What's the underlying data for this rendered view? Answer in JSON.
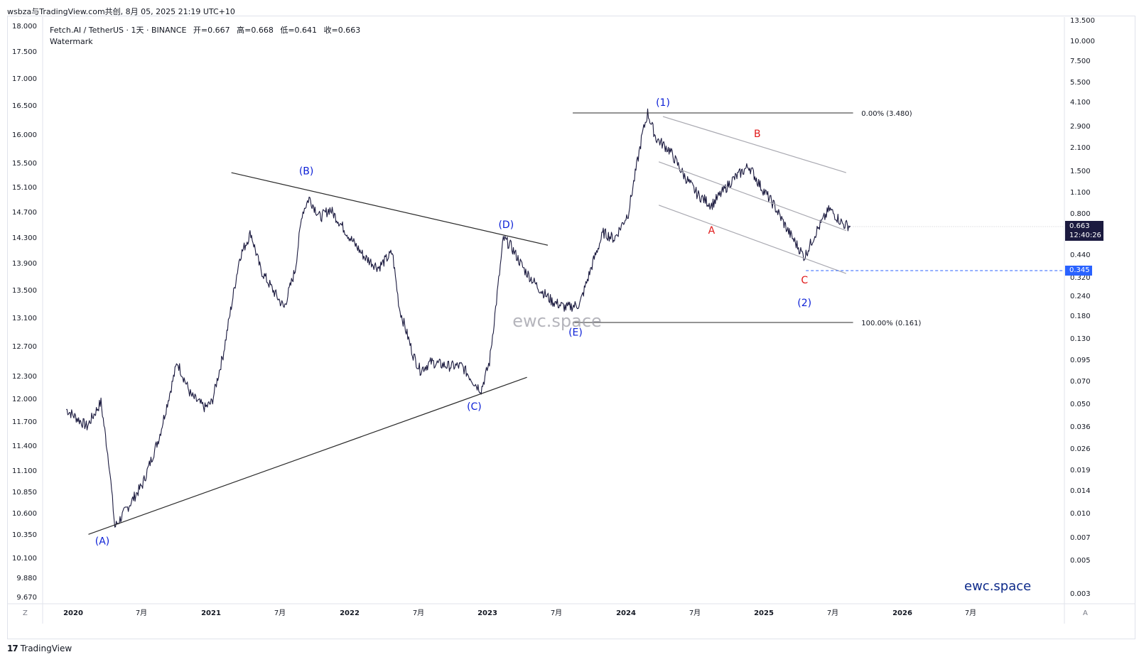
{
  "top_bar": {
    "text": "wsbza与TradingView.com共创, 8月 05, 2025 21:19 UTC+10"
  },
  "legend": {
    "symbol": "Fetch.AI / TetherUS · 1天 · BINANCE",
    "open": "开=0.667",
    "high": "高=0.668",
    "low": "低=0.641",
    "close": "收=0.663",
    "watermark": "Watermark"
  },
  "footer": {
    "logo": "17",
    "text": "TradingView"
  },
  "brand": "ewc.space",
  "corner_left": "Z",
  "corner_right": "A",
  "price_tag": {
    "price": "0.663",
    "countdown": "12:40:26",
    "level": "0.345"
  },
  "colors": {
    "candles": "#1b1a3f",
    "wave_blue": "#0b1fd6",
    "wave_red": "#e01818",
    "channel": "#a9a9b1",
    "dashed": "#2962ff",
    "tag": "#1b1a3f",
    "level_tag": "#2962ff"
  },
  "chart_data": {
    "type": "line",
    "title": "Fetch.AI / TetherUS · 1天 · BINANCE",
    "watermark_text": "ewc.space",
    "x_ticks": [
      "2020",
      "7月",
      "2021",
      "7月",
      "2022",
      "7月",
      "2023",
      "7月",
      "2024",
      "7月",
      "2025",
      "7月",
      "2026",
      "7月"
    ],
    "left_axis_ticks": [
      "18.000",
      "17.500",
      "17.000",
      "16.500",
      "16.000",
      "15.500",
      "15.100",
      "14.700",
      "14.300",
      "13.900",
      "13.500",
      "13.100",
      "12.700",
      "12.300",
      "12.000",
      "11.700",
      "11.400",
      "11.100",
      "10.850",
      "10.600",
      "10.350",
      "10.100",
      "9.880",
      "9.670"
    ],
    "right_axis_ticks": [
      "13.500",
      "10.000",
      "7.500",
      "5.500",
      "4.100",
      "2.900",
      "2.100",
      "1.500",
      "1.100",
      "0.800",
      "0.440",
      "0.320",
      "0.240",
      "0.180",
      "0.130",
      "0.095",
      "0.070",
      "0.050",
      "0.036",
      "0.026",
      "0.019",
      "0.014",
      "0.010",
      "0.007",
      "0.005",
      "0.003"
    ],
    "right_scale": "log",
    "series": [
      {
        "kind": "price-close",
        "x": [
          2019.95,
          2020.1,
          2020.2,
          2020.26,
          2020.3,
          2020.5,
          2020.62,
          2020.75,
          2020.85,
          2020.95,
          2021.0,
          2021.08,
          2021.2,
          2021.28,
          2021.35,
          2021.45,
          2021.52,
          2021.6,
          2021.65,
          2021.7,
          2021.78,
          2021.85,
          2021.92,
          2022.0,
          2022.1,
          2022.2,
          2022.3,
          2022.35,
          2022.45,
          2022.5,
          2022.58,
          2022.7,
          2022.8,
          2022.9,
          2022.94,
          2023.0,
          2023.05,
          2023.1,
          2023.15,
          2023.25,
          2023.35,
          2023.45,
          2023.55,
          2023.65,
          2023.75,
          2023.82,
          2023.9,
          2024.0,
          2024.1,
          2024.14,
          2024.2,
          2024.3,
          2024.4,
          2024.5,
          2024.6,
          2024.75,
          2024.87,
          2024.95,
          2025.05,
          2025.15,
          2025.27,
          2025.35,
          2025.45,
          2025.55,
          2025.6
        ],
        "y": [
          0.045,
          0.035,
          0.05,
          0.02,
          0.008,
          0.015,
          0.03,
          0.09,
          0.055,
          0.046,
          0.05,
          0.1,
          0.42,
          0.6,
          0.35,
          0.25,
          0.2,
          0.35,
          0.8,
          1.0,
          0.75,
          0.85,
          0.7,
          0.55,
          0.42,
          0.36,
          0.45,
          0.2,
          0.1,
          0.08,
          0.09,
          0.085,
          0.085,
          0.065,
          0.06,
          0.09,
          0.22,
          0.55,
          0.5,
          0.35,
          0.27,
          0.22,
          0.2,
          0.21,
          0.4,
          0.6,
          0.55,
          0.8,
          2.5,
          3.48,
          2.4,
          2.0,
          1.4,
          1.05,
          0.9,
          1.3,
          1.6,
          1.2,
          0.9,
          0.62,
          0.42,
          0.6,
          0.85,
          0.68,
          0.663
        ]
      }
    ],
    "annotations": [
      {
        "label": "(A)",
        "x": 2020.21,
        "y": 0.0075,
        "color": "blue"
      },
      {
        "label": "(B)",
        "x": 2021.68,
        "y": 1.25,
        "color": "blue"
      },
      {
        "label": "(C)",
        "x": 2022.89,
        "y": 0.055,
        "color": "blue"
      },
      {
        "label": "(D)",
        "x": 2023.12,
        "y": 0.58,
        "color": "blue"
      },
      {
        "label": "(E)",
        "x": 2023.62,
        "y": 0.16,
        "color": "blue"
      },
      {
        "label": "(1)",
        "x": 2024.25,
        "y": 3.48,
        "color": "blue"
      },
      {
        "label": "A",
        "x": 2024.6,
        "y": 0.7,
        "color": "red"
      },
      {
        "label": "B",
        "x": 2024.93,
        "y": 2.2,
        "color": "red"
      },
      {
        "label": "C",
        "x": 2025.27,
        "y": 0.33,
        "color": "red"
      },
      {
        "label": "(2)",
        "x": 2025.27,
        "y": 0.28,
        "color": "blue"
      }
    ],
    "fibonacci": [
      {
        "label": "0.00% (3.480)",
        "value": 3.48
      },
      {
        "label": "100.00% (0.161)",
        "value": 0.161
      }
    ],
    "grid": false,
    "legend": "top-left"
  }
}
